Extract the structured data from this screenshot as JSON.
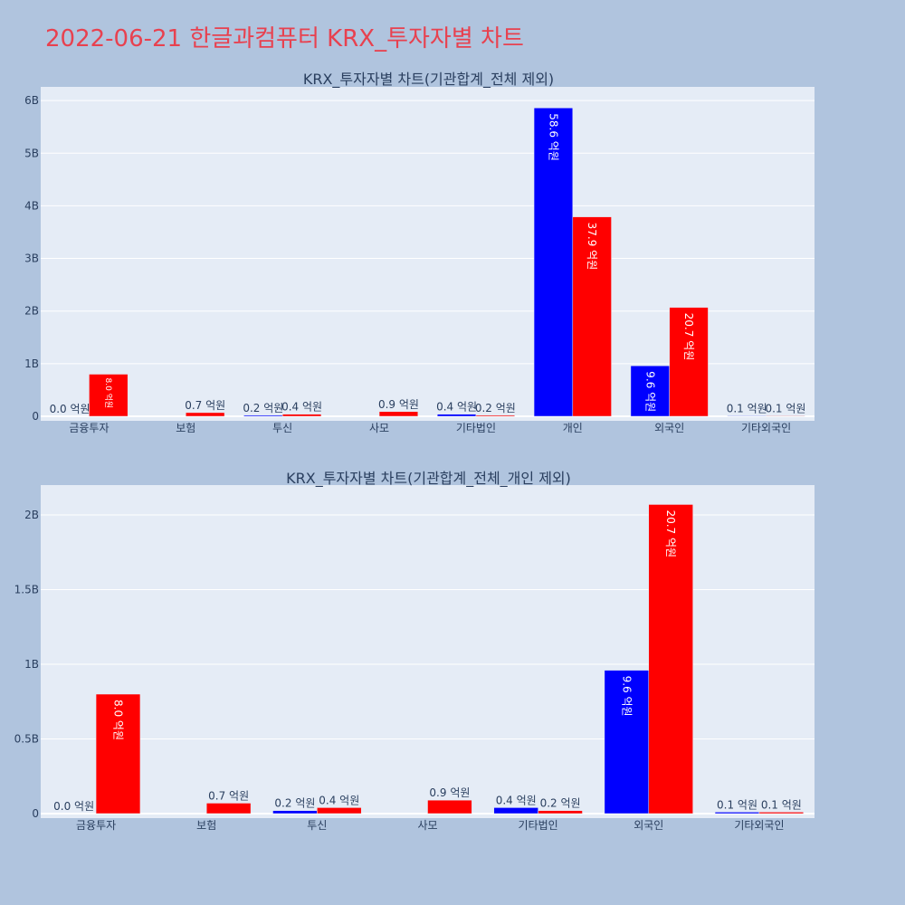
{
  "title": "2022-06-21 한글과컴퓨터 KRX_투자자별 차트",
  "colors": {
    "sell": "#0000ff",
    "buy": "#ff0000",
    "plot_bg": "#e5ecf6",
    "paper_bg": "#b0c4de",
    "title": "#e8414f"
  },
  "chart_data": [
    {
      "type": "bar",
      "title": "KRX_투자자별 차트(기관합계_전체 제외)",
      "categories": [
        "금융투자",
        "보험",
        "투신",
        "사모",
        "기타법인",
        "개인",
        "외국인",
        "기타외국인"
      ],
      "series": [
        {
          "color": "#0000ff",
          "values": [
            0.0,
            0,
            0.02,
            0,
            0.04,
            5.86,
            0.96,
            0.01
          ],
          "labels": [
            "0.0 억원",
            "",
            "0.2 억원",
            "",
            "0.4 억원",
            "58.6 억원",
            "9.6 억원",
            "0.1 억원"
          ]
        },
        {
          "color": "#ff0000",
          "values": [
            0.8,
            0.07,
            0.04,
            0.09,
            0.02,
            3.79,
            2.07,
            0.01
          ],
          "labels": [
            "8.0 억원",
            "0.7 억원",
            "0.4 억원",
            "0.9 억원",
            "0.2 억원",
            "37.9 억원",
            "20.7 억원",
            "0.1 억원"
          ]
        }
      ],
      "yticks": [
        {
          "value": 0,
          "label": "0"
        },
        {
          "value": 1,
          "label": "1B"
        },
        {
          "value": 2,
          "label": "2B"
        },
        {
          "value": 3,
          "label": "3B"
        },
        {
          "value": 4,
          "label": "4B"
        },
        {
          "value": 5,
          "label": "5B"
        },
        {
          "value": 6,
          "label": "6B"
        }
      ],
      "ylim": [
        0,
        6.26
      ],
      "grid": true
    },
    {
      "type": "bar",
      "title": "KRX_투자자별 차트(기관합계_전체_개인 제외)",
      "categories": [
        "금융투자",
        "보험",
        "투신",
        "사모",
        "기타법인",
        "외국인",
        "기타외국인"
      ],
      "series": [
        {
          "color": "#0000ff",
          "values": [
            0.0,
            0,
            0.02,
            0,
            0.04,
            0.96,
            0.01
          ],
          "labels": [
            "0.0 억원",
            "",
            "0.2 억원",
            "",
            "0.4 억원",
            "9.6 억원",
            "0.1 억원"
          ]
        },
        {
          "color": "#ff0000",
          "values": [
            0.8,
            0.07,
            0.04,
            0.09,
            0.02,
            2.07,
            0.01
          ],
          "labels": [
            "8.0 억원",
            "0.7 억원",
            "0.4 억원",
            "0.9 억원",
            "0.2 억원",
            "20.7 억원",
            "0.1 억원"
          ]
        }
      ],
      "yticks": [
        {
          "value": 0,
          "label": "0"
        },
        {
          "value": 0.5,
          "label": "0.5B"
        },
        {
          "value": 1,
          "label": "1B"
        },
        {
          "value": 1.5,
          "label": "1.5B"
        },
        {
          "value": 2,
          "label": "2B"
        }
      ],
      "ylim": [
        0,
        2.2
      ],
      "grid": true
    }
  ]
}
